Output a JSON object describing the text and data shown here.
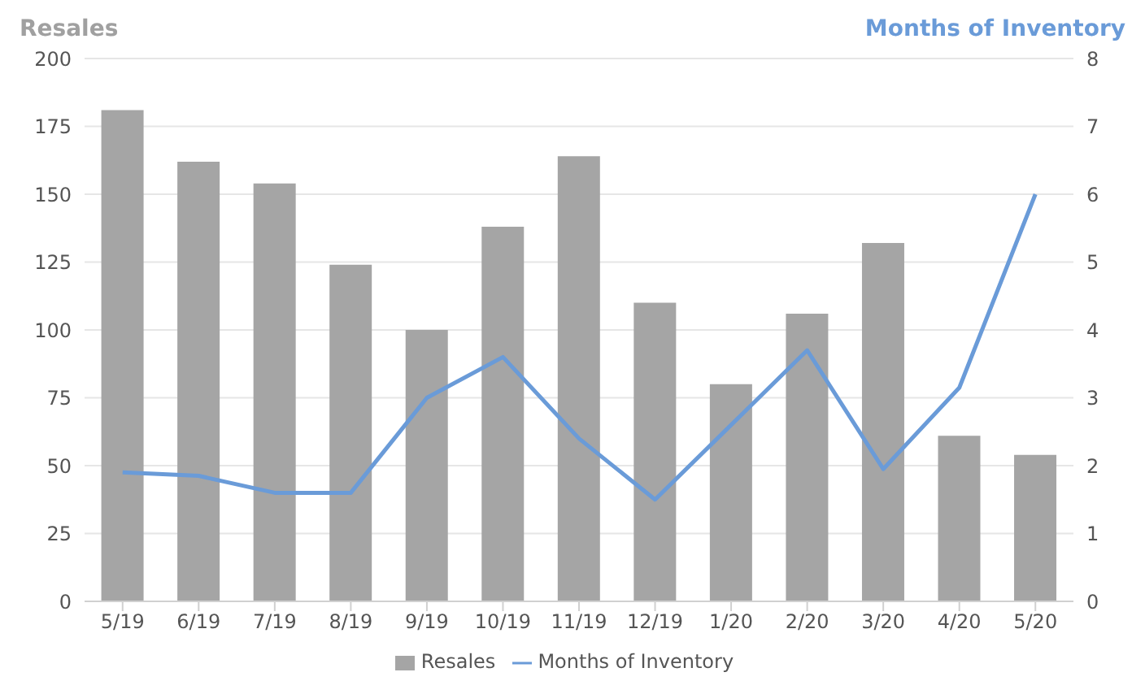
{
  "chart_data": {
    "type": "bar",
    "ylabel": "Resales",
    "y2label": "Months of Inventory",
    "categories": [
      "5/19",
      "6/19",
      "7/19",
      "8/19",
      "9/19",
      "10/19",
      "11/19",
      "12/19",
      "1/20",
      "2/20",
      "3/20",
      "4/20",
      "5/20"
    ],
    "series": [
      {
        "name": "Resales",
        "color": "#a5a5a5",
        "values": [
          181,
          162,
          154,
          124,
          100,
          138,
          164,
          110,
          80,
          106,
          132,
          61,
          54
        ]
      },
      {
        "name": "Months of Inventory",
        "type": "line",
        "axis": "y2",
        "color": "#6a9bd8",
        "values": [
          1.9,
          1.85,
          1.6,
          1.6,
          3.0,
          3.6,
          2.4,
          1.5,
          2.6,
          3.7,
          1.95,
          3.15,
          6.0
        ]
      }
    ],
    "ylim": [
      0,
      200
    ],
    "yticks": [
      0,
      25,
      50,
      75,
      100,
      125,
      150,
      175,
      200
    ],
    "y2lim": [
      0,
      8
    ],
    "y2ticks": [
      0,
      1,
      2,
      3,
      4,
      5,
      6,
      7,
      8
    ],
    "grid": "y",
    "legend": "bottom",
    "marker": "none",
    "line_style": "solid"
  }
}
